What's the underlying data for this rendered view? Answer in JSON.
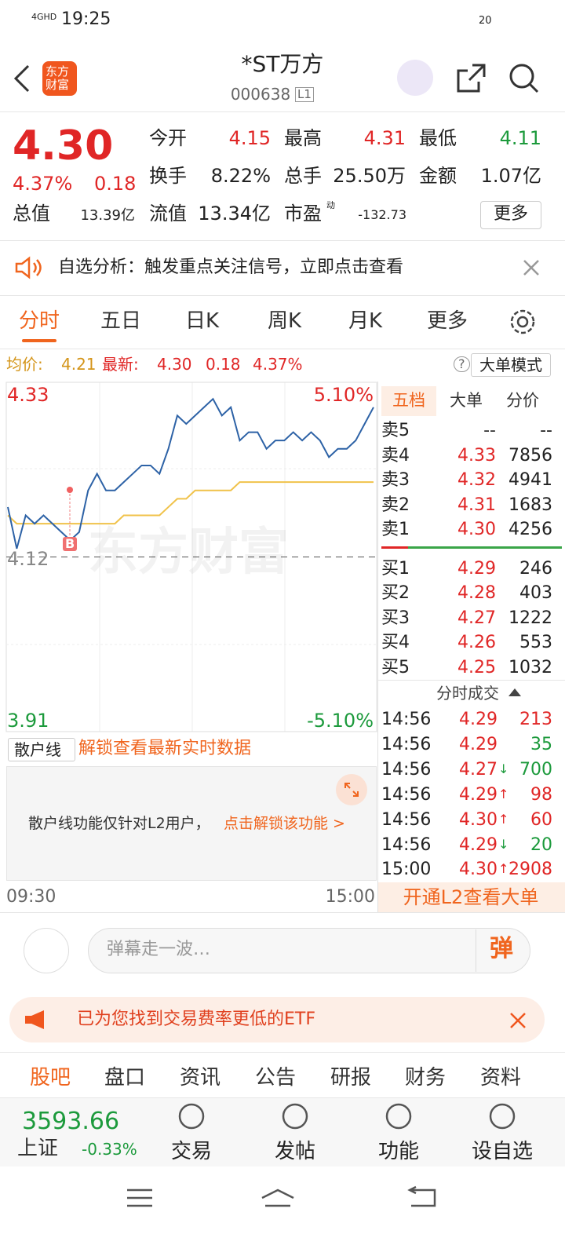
{
  "status_bar": {
    "network": "4GHD",
    "time": "19:25",
    "battery": "20"
  },
  "header": {
    "logo": "东方财富",
    "title": "*ST万方",
    "code": "000638",
    "level": "L1"
  },
  "quote": {
    "price": "4.30",
    "change_pct": "4.37%",
    "change": "0.18",
    "stats": [
      {
        "label": "今开",
        "value": "4.15"
      },
      {
        "label": "最高",
        "value": "4.31"
      },
      {
        "label": "最低",
        "value": "4.11"
      },
      {
        "label": "换手",
        "value": "8.22%"
      },
      {
        "label": "总手",
        "value": "25.50万"
      },
      {
        "label": "金额",
        "value": "1.07亿"
      },
      {
        "label": "总值",
        "value": "13.39亿"
      },
      {
        "label": "流值",
        "value": "13.34亿"
      },
      {
        "label": "市盈",
        "value": "-132.73"
      }
    ],
    "pe_tag": "动",
    "more": "更多"
  },
  "notice": {
    "text": "自选分析：触发重点关注信号，立即点击查看"
  },
  "tabs": [
    "分时",
    "五日",
    "日K",
    "周K",
    "月K",
    "更多"
  ],
  "summary": {
    "avg_label": "均价:",
    "avg": "4.21",
    "latest_label": "最新:",
    "latest": "4.30",
    "change": "0.18",
    "pct": "4.37%",
    "help": "?",
    "mode": "大单模式"
  },
  "intraday": {
    "ylim": [
      3.91,
      4.33
    ],
    "yticks": [
      4.33,
      4.12,
      3.91
    ],
    "pct_top": "5.10%",
    "pct_bottom": "-5.10%",
    "x_start": "09:30",
    "x_end": "15:00",
    "watermark": "东方财富",
    "marker": "B",
    "price": [
      4.18,
      4.13,
      4.17,
      4.16,
      4.17,
      4.16,
      4.15,
      4.14,
      4.15,
      4.2,
      4.22,
      4.2,
      4.2,
      4.21,
      4.22,
      4.23,
      4.23,
      4.22,
      4.25,
      4.29,
      4.28,
      4.29,
      4.3,
      4.31,
      4.29,
      4.3,
      4.26,
      4.27,
      4.27,
      4.25,
      4.26,
      4.26,
      4.27,
      4.26,
      4.27,
      4.26,
      4.24,
      4.25,
      4.25,
      4.26,
      4.28,
      4.3
    ],
    "avg": [
      4.17,
      4.16,
      4.16,
      4.16,
      4.16,
      4.16,
      4.16,
      4.16,
      4.16,
      4.16,
      4.16,
      4.16,
      4.16,
      4.17,
      4.17,
      4.17,
      4.17,
      4.17,
      4.18,
      4.19,
      4.19,
      4.2,
      4.2,
      4.2,
      4.2,
      4.2,
      4.21,
      4.21,
      4.21,
      4.21,
      4.21,
      4.21,
      4.21,
      4.21,
      4.21,
      4.21,
      4.21,
      4.21,
      4.21,
      4.21,
      4.21,
      4.21
    ],
    "price_color": "#2d62a6",
    "avg_color": "#f0c24a"
  },
  "retail": {
    "select": "散户线",
    "unlock": "解锁查看最新实时数据",
    "note": "散户线功能仅针对L2用户，",
    "link": "点击解锁该功能 >"
  },
  "order_book": {
    "tabs": [
      "五档",
      "大单",
      "分价"
    ],
    "asks": [
      {
        "label": "卖5",
        "price": "--",
        "volume": "--"
      },
      {
        "label": "卖4",
        "price": "4.33",
        "volume": "7856"
      },
      {
        "label": "卖3",
        "price": "4.32",
        "volume": "4941"
      },
      {
        "label": "卖2",
        "price": "4.31",
        "volume": "1683"
      },
      {
        "label": "卖1",
        "price": "4.30",
        "volume": "4256"
      }
    ],
    "bids": [
      {
        "label": "买1",
        "price": "4.29",
        "volume": "246"
      },
      {
        "label": "买2",
        "price": "4.28",
        "volume": "403"
      },
      {
        "label": "买3",
        "price": "4.27",
        "volume": "1222"
      },
      {
        "label": "买4",
        "price": "4.26",
        "volume": "553"
      },
      {
        "label": "买5",
        "price": "4.25",
        "volume": "1032"
      }
    ]
  },
  "trades": {
    "title": "分时成交",
    "rows": [
      {
        "time": "14:56",
        "price": "4.29",
        "arrow": "",
        "volume": "213",
        "color": "#e02626"
      },
      {
        "time": "14:56",
        "price": "4.29",
        "arrow": "",
        "volume": "35",
        "color": "#1c9a3c"
      },
      {
        "time": "14:56",
        "price": "4.27",
        "arrow": "↓",
        "volume": "700",
        "color": "#1c9a3c"
      },
      {
        "time": "14:56",
        "price": "4.29",
        "arrow": "↑",
        "volume": "98",
        "color": "#e02626"
      },
      {
        "time": "14:56",
        "price": "4.30",
        "arrow": "↑",
        "volume": "60",
        "color": "#e02626"
      },
      {
        "time": "14:56",
        "price": "4.29",
        "arrow": "↓",
        "volume": "20",
        "color": "#1c9a3c"
      },
      {
        "time": "15:00",
        "price": "4.30",
        "arrow": "↑",
        "volume": "2908",
        "color": "#e02626"
      }
    ],
    "banner": "开通L2查看大单"
  },
  "comment": {
    "placeholder": "弹幕走一波…",
    "button": "弹"
  },
  "ad": {
    "text": "已为您找到交易费率更低的ETF"
  },
  "bottom_tabs": [
    "股吧",
    "盘口",
    "资讯",
    "公告",
    "研报",
    "财务",
    "资料"
  ],
  "index": {
    "value": "3593.66",
    "name": "上证",
    "pct": "-0.33%"
  },
  "nav": [
    "交易",
    "发帖",
    "功能",
    "设自选"
  ]
}
